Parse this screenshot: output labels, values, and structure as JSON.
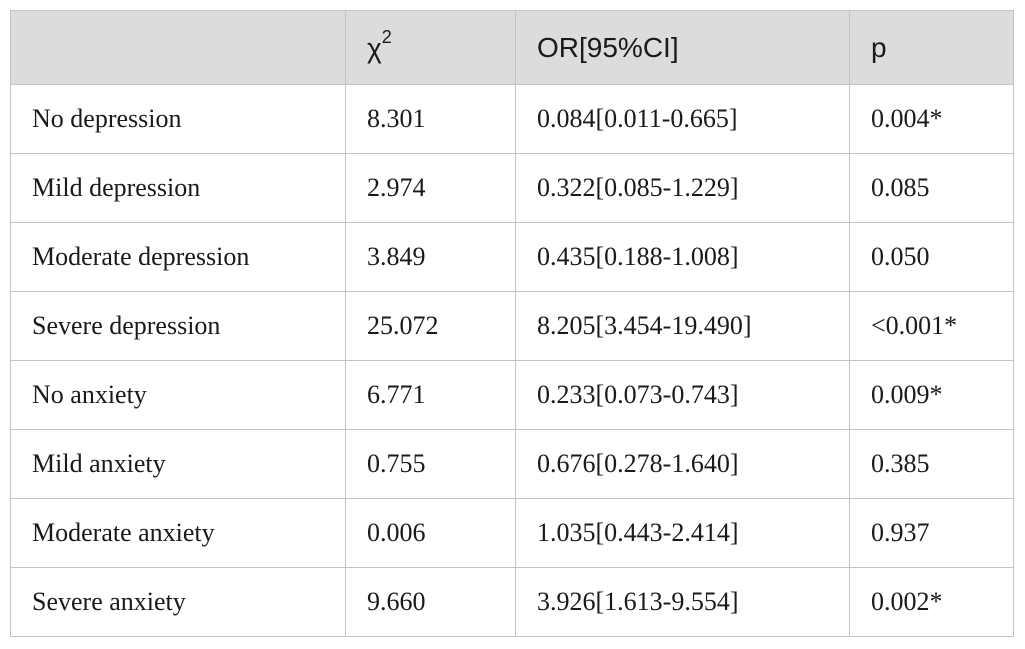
{
  "table": {
    "headers": {
      "label": "",
      "chi_symbol": "χ",
      "chi_exponent": "2",
      "or": "OR[95%CI]",
      "p": "p"
    },
    "rows": [
      {
        "label": "No depression",
        "chi2": "8.301",
        "or": "0.084[0.011-0.665]",
        "p": "0.004*"
      },
      {
        "label": "Mild depression",
        "chi2": "2.974",
        "or": "0.322[0.085-1.229]",
        "p": "0.085"
      },
      {
        "label": "Moderate depression",
        "chi2": "3.849",
        "or": "0.435[0.188-1.008]",
        "p": "0.050"
      },
      {
        "label": "Severe depression",
        "chi2": "25.072",
        "or": "8.205[3.454-19.490]",
        "p": "<0.001*"
      },
      {
        "label": "No anxiety",
        "chi2": "6.771",
        "or": "0.233[0.073-0.743]",
        "p": "0.009*"
      },
      {
        "label": "Mild anxiety",
        "chi2": "0.755",
        "or": "0.676[0.278-1.640]",
        "p": "0.385"
      },
      {
        "label": "Moderate anxiety",
        "chi2": "0.006",
        "or": "1.035[0.443-2.414]",
        "p": "0.937"
      },
      {
        "label": "Severe anxiety",
        "chi2": "9.660",
        "or": "3.926[1.613-9.554]",
        "p": "0.002*"
      }
    ]
  },
  "colors": {
    "header_background": "#dcdcdc",
    "border": "#c4c4c4",
    "text": "#1a1a1a"
  }
}
